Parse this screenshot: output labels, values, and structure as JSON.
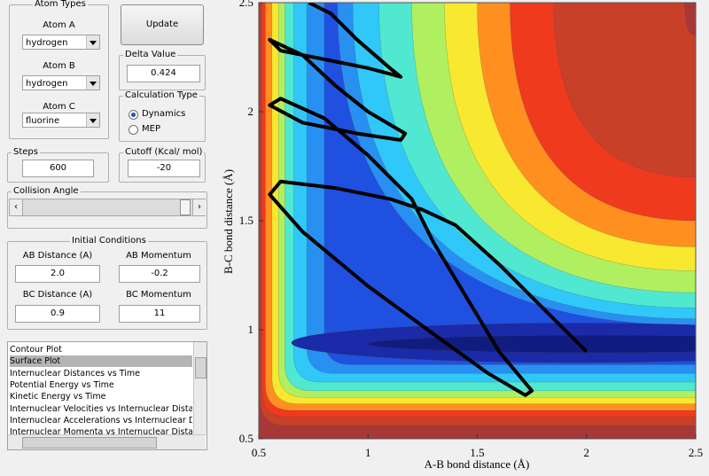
{
  "atom_types": {
    "title": "Atom Types",
    "atom_a_label": "Atom A",
    "atom_a": "hydrogen",
    "atom_b_label": "Atom B",
    "atom_b": "hydrogen",
    "atom_c_label": "Atom C",
    "atom_c": "fluorine"
  },
  "update_button": "Update",
  "delta_value": {
    "title": "Delta Value",
    "value": "0.424"
  },
  "calculation_type": {
    "title": "Calculation Type",
    "options": [
      "Dynamics",
      "MEP"
    ]
  },
  "steps": {
    "title": "Steps",
    "value": "600"
  },
  "cutoff": {
    "title": "Cutoff (Kcal/ mol)",
    "value": "-20"
  },
  "collision_angle": {
    "title": "Collision Angle"
  },
  "initial_conditions": {
    "title": "Initial Conditions",
    "ab_distance_label": "AB Distance (A)",
    "ab_distance": "2.0",
    "ab_momentum_label": "AB Momentum",
    "ab_momentum": "-0.2",
    "bc_distance_label": "BC Distance (A)",
    "bc_distance": "0.9",
    "bc_momentum_label": "BC Momentum",
    "bc_momentum": "11"
  },
  "plot_list": [
    "Contour Plot",
    "Surface Plot",
    "Internuclear Distances vs Time",
    "Potential Energy vs Time",
    "Kinetic Energy vs Time",
    "Internuclear Velocities vs Internuclear Distance",
    "Internuclear Accelerations vs Internuclear Dista",
    "Internuclear Momenta vs Internuclear Distance"
  ],
  "chart_data": {
    "type": "line",
    "xlabel": "A-B bond distance (Å)",
    "ylabel": "B-C bond distance (Å)",
    "xlim": [
      0.5,
      2.5
    ],
    "ylim": [
      0.5,
      2.5
    ],
    "xticks": [
      0.5,
      1,
      1.5,
      2,
      2.5
    ],
    "yticks": [
      0.5,
      1,
      1.5,
      2,
      2.5
    ],
    "color": "#000000",
    "x": [
      2.0,
      1.8,
      1.6,
      1.4,
      1.25,
      1.1,
      0.85,
      0.6,
      0.55,
      0.7,
      1.0,
      1.3,
      1.55,
      1.72,
      1.75,
      1.6,
      1.45,
      1.3,
      1.2,
      1.0,
      0.8,
      0.6,
      0.55,
      0.7,
      0.95,
      1.15,
      1.17,
      1.0,
      0.85,
      0.7,
      0.55,
      0.6,
      0.8,
      1.0,
      1.15,
      1.1,
      0.95,
      0.83,
      0.73
    ],
    "y": [
      0.9,
      1.1,
      1.3,
      1.48,
      1.55,
      1.6,
      1.65,
      1.68,
      1.62,
      1.45,
      1.2,
      0.98,
      0.8,
      0.7,
      0.72,
      0.9,
      1.15,
      1.4,
      1.6,
      1.8,
      1.97,
      2.06,
      2.03,
      1.95,
      1.9,
      1.87,
      1.9,
      2.0,
      2.12,
      2.26,
      2.33,
      2.28,
      2.24,
      2.2,
      2.16,
      2.2,
      2.33,
      2.45,
      2.5
    ]
  }
}
